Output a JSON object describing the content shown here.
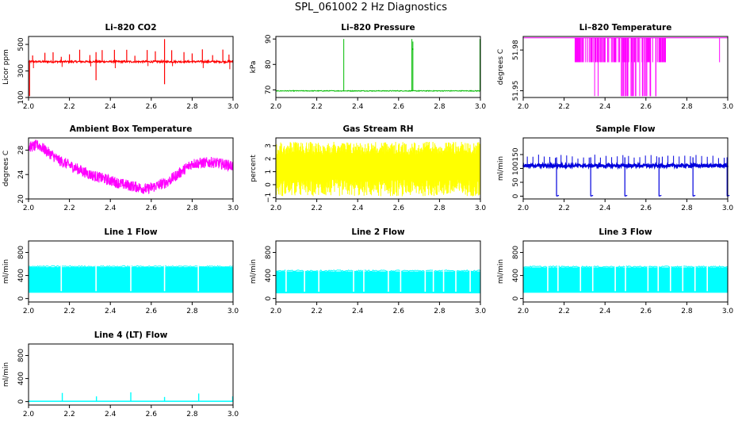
{
  "page": {
    "title": "SPL_061002  2 Hz Diagnostics"
  },
  "chart_data": [
    {
      "type": "line",
      "title": "Li–820 CO2",
      "xlabel": "",
      "ylabel": "Licor ppm",
      "xlim": [
        2.0,
        3.0
      ],
      "ylim": [
        100,
        560
      ],
      "xticks": [
        "2.0",
        "2.2",
        "2.4",
        "2.6",
        "2.8",
        "3.0"
      ],
      "yticks": [
        "100",
        "300",
        "500"
      ],
      "ytick_values": [
        100,
        300,
        500
      ],
      "color": "#ff0000",
      "pattern": "co2",
      "series": [
        {
          "baseline": 370,
          "spike_high": 470,
          "spike_max": 540,
          "min": 110
        }
      ]
    },
    {
      "type": "line",
      "title": "Li–820 Pressure",
      "xlabel": "",
      "ylabel": "kPa",
      "xlim": [
        2.0,
        3.0
      ],
      "ylim": [
        67,
        91
      ],
      "xticks": [
        "2.0",
        "2.2",
        "2.4",
        "2.6",
        "2.8",
        "3.0"
      ],
      "yticks": [
        "70",
        "80",
        "90"
      ],
      "ytick_values": [
        70,
        80,
        90
      ],
      "color": "#00bb00",
      "pattern": "pressure",
      "series": [
        {
          "baseline": 69.6,
          "spike_max": 90
        }
      ]
    },
    {
      "type": "line",
      "title": "Li–820 Temperature",
      "xlabel": "",
      "ylabel": "degrees C",
      "xlim": [
        2.0,
        3.0
      ],
      "ylim": [
        51.945,
        51.99
      ],
      "xticks": [
        "2.0",
        "2.2",
        "2.4",
        "2.6",
        "2.8",
        "3.0"
      ],
      "yticks": [
        "51.95",
        "51.98"
      ],
      "ytick_values": [
        51.95,
        51.98
      ],
      "color": "#ff00ff",
      "pattern": "temp",
      "series": [
        {
          "upper": 51.989,
          "mid": 51.971,
          "lower": 51.946
        }
      ]
    },
    {
      "type": "line",
      "title": "Ambient Box Temperature",
      "xlabel": "",
      "ylabel": "degrees C",
      "xlim": [
        2.0,
        3.0
      ],
      "ylim": [
        20,
        30
      ],
      "xticks": [
        "2.0",
        "2.2",
        "2.4",
        "2.6",
        "2.8",
        "3.0"
      ],
      "yticks": [
        "20",
        "24",
        "28"
      ],
      "ytick_values": [
        20,
        24,
        28
      ],
      "color": "#ff00ff",
      "pattern": "ambient",
      "series": [
        {
          "x": [
            2.0,
            2.05,
            2.15,
            2.3,
            2.45,
            2.58,
            2.68,
            2.8,
            2.9,
            3.0
          ],
          "y": [
            28.5,
            28.8,
            26.3,
            24.0,
            22.5,
            21.6,
            22.8,
            25.8,
            26.0,
            25.4
          ]
        }
      ]
    },
    {
      "type": "line",
      "title": "Gas Stream RH",
      "xlabel": "",
      "ylabel": "percent",
      "xlim": [
        2.0,
        3.0
      ],
      "ylim": [
        -1.1,
        3.6
      ],
      "xticks": [
        "2.0",
        "2.2",
        "2.4",
        "2.6",
        "2.8",
        "3.0"
      ],
      "yticks": [
        "−1",
        "0",
        "1",
        "2",
        "3"
      ],
      "ytick_values": [
        -1,
        0,
        1,
        2,
        3
      ],
      "color": "#ffff00",
      "pattern": "rh",
      "series": [
        {
          "min": -0.9,
          "max": 3.3
        }
      ]
    },
    {
      "type": "line",
      "title": "Sample Flow",
      "xlabel": "",
      "ylabel": "ml/min",
      "xlim": [
        2.0,
        3.0
      ],
      "ylim": [
        -10,
        210
      ],
      "xticks": [
        "2.0",
        "2.2",
        "2.4",
        "2.6",
        "2.8",
        "3.0"
      ],
      "yticks": [
        "0",
        "50",
        "100",
        "150"
      ],
      "ytick_values": [
        0,
        50,
        100,
        150
      ],
      "color": "#0000dd",
      "pattern": "sampleflow",
      "series": [
        {
          "baseline": 110,
          "drops_x": [
            2.163,
            2.33,
            2.497,
            2.664,
            2.83,
            2.997
          ],
          "drop_to": 0
        }
      ]
    },
    {
      "type": "line",
      "title": "Line 1 Flow",
      "xlabel": "",
      "ylabel": "ml/min",
      "xlim": [
        2.0,
        3.0
      ],
      "ylim": [
        -60,
        1000
      ],
      "xticks": [
        "2.0",
        "2.2",
        "2.4",
        "2.6",
        "2.8",
        "3.0"
      ],
      "yticks": [
        "0",
        "400",
        "800"
      ],
      "ytick_values": [
        0,
        400,
        800
      ],
      "color": "#00ffff",
      "pattern": "lineflow",
      "series": [
        {
          "low": 100,
          "high": 545,
          "gaps_x": [
            2.16,
            2.33,
            2.5,
            2.665,
            2.83
          ]
        }
      ]
    },
    {
      "type": "line",
      "title": "Line 2 Flow",
      "xlabel": "",
      "ylabel": "ml/min",
      "xlim": [
        2.0,
        3.0
      ],
      "ylim": [
        -60,
        1000
      ],
      "xticks": [
        "2.0",
        "2.2",
        "2.4",
        "2.6",
        "2.8",
        "3.0"
      ],
      "yticks": [
        "0",
        "400",
        "800"
      ],
      "ytick_values": [
        0,
        400,
        800
      ],
      "color": "#00ffff",
      "pattern": "lineflow",
      "series": [
        {
          "low": 90,
          "high": 470,
          "gaps_x": [
            2.05,
            2.14,
            2.21,
            2.38,
            2.43,
            2.55,
            2.61,
            2.73,
            2.77,
            2.82,
            2.88,
            2.95
          ]
        }
      ]
    },
    {
      "type": "line",
      "title": "Line 3 Flow",
      "xlabel": "",
      "ylabel": "ml/min",
      "xlim": [
        2.0,
        3.0
      ],
      "ylim": [
        -60,
        1000
      ],
      "xticks": [
        "2.0",
        "2.2",
        "2.4",
        "2.6",
        "2.8",
        "3.0"
      ],
      "yticks": [
        "0",
        "400",
        "800"
      ],
      "ytick_values": [
        0,
        400,
        800
      ],
      "color": "#00ffff",
      "pattern": "lineflow",
      "series": [
        {
          "low": 100,
          "high": 540,
          "gaps_x": [
            2.12,
            2.17,
            2.28,
            2.34,
            2.45,
            2.5,
            2.61,
            2.66,
            2.72,
            2.78,
            2.84,
            2.9
          ]
        }
      ]
    },
    {
      "type": "line",
      "title": "Line 4 (LT) Flow",
      "xlabel": "",
      "ylabel": "ml/min",
      "xlim": [
        2.0,
        3.0
      ],
      "ylim": [
        -60,
        1000
      ],
      "xticks": [
        "2.0",
        "2.2",
        "2.4",
        "2.6",
        "2.8",
        "3.0"
      ],
      "yticks": [
        "0",
        "400",
        "800"
      ],
      "ytick_values": [
        0,
        400,
        800
      ],
      "color": "#00ffff",
      "pattern": "line4",
      "series": [
        {
          "baseline": 5,
          "spikes_x": [
            2.165,
            2.332,
            2.5,
            2.665,
            2.832,
            2.998
          ],
          "spikes_y": [
            150,
            90,
            160,
            80,
            140,
            90
          ]
        }
      ]
    }
  ]
}
